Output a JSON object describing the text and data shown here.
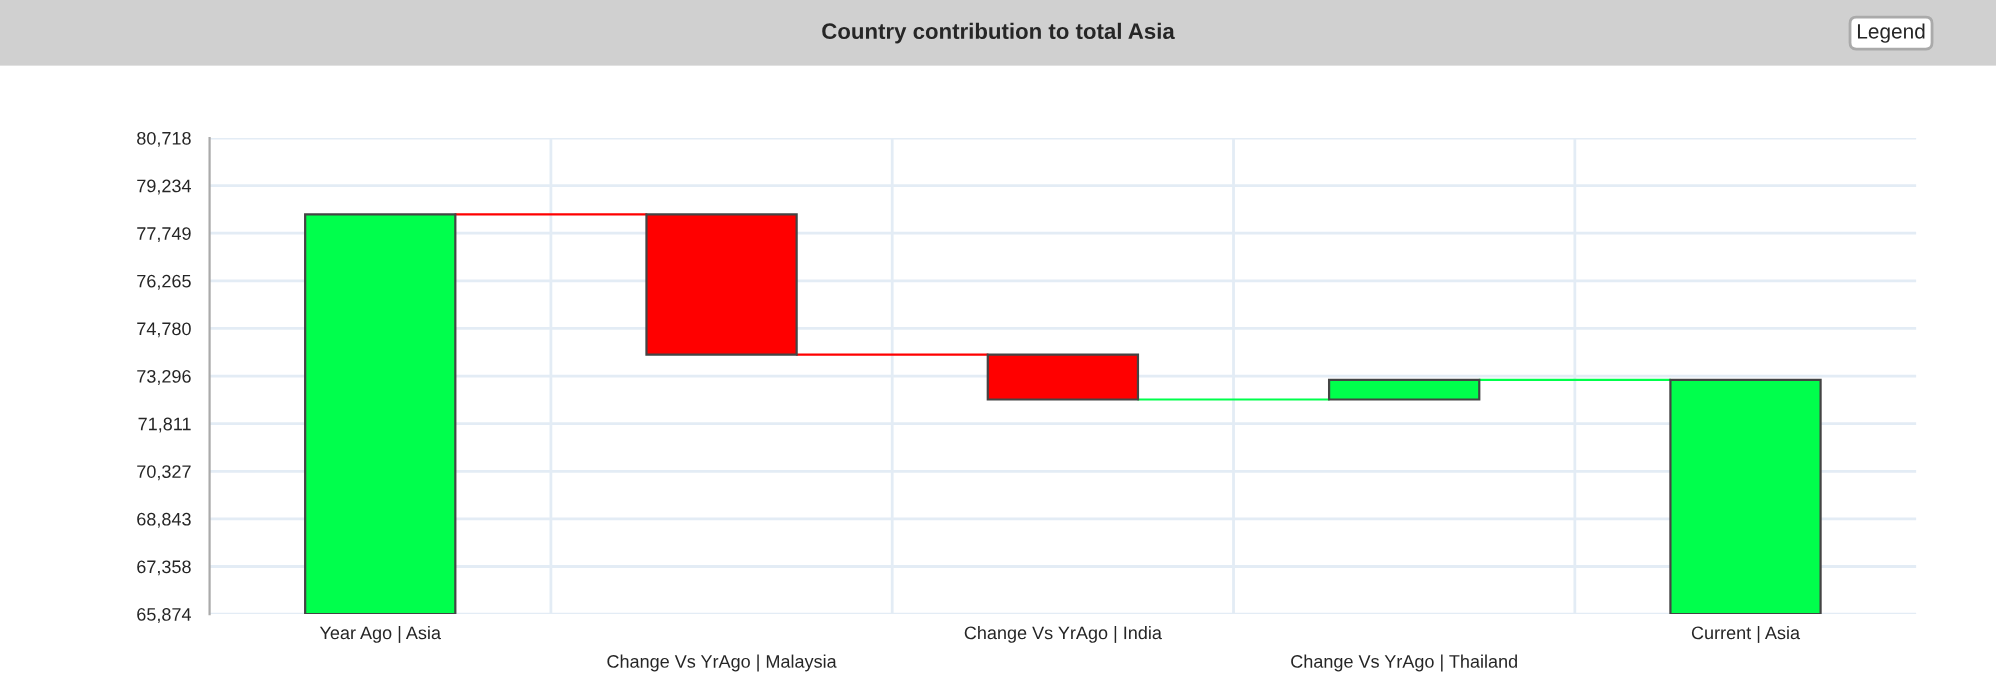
{
  "chart_data": {
    "type": "bar",
    "title": "Country contribution to total Asia",
    "categories": [
      "Year Ago | Asia",
      "Change Vs YrAgo | Malaysia",
      "Change Vs YrAgo | India",
      "Change Vs YrAgo | Thailand",
      "Current | Asia"
    ],
    "base": [
      65874,
      78340,
      73965,
      72565,
      65874
    ],
    "values": [
      12466,
      -4375,
      -1400,
      609,
      7300
    ],
    "colors": [
      "#00ff4c",
      "#ff0000",
      "#ff0000",
      "#00ff4c",
      "#00ff4c"
    ],
    "ylim": [
      65874,
      80718
    ],
    "yticks": [
      {
        "value": 65874,
        "label": "65,874"
      },
      {
        "value": 67358,
        "label": "67,358"
      },
      {
        "value": 68843,
        "label": "68,843"
      },
      {
        "value": 70327,
        "label": "70,327"
      },
      {
        "value": 71811,
        "label": "71,811"
      },
      {
        "value": 73296,
        "label": "73,296"
      },
      {
        "value": 74780,
        "label": "74,780"
      },
      {
        "value": 76265,
        "label": "76,265"
      },
      {
        "value": 77749,
        "label": "77,749"
      },
      {
        "value": 79234,
        "label": "79,234"
      },
      {
        "value": 80718,
        "label": "80,718"
      }
    ],
    "grid": true,
    "annotations": [
      "Legend"
    ]
  }
}
